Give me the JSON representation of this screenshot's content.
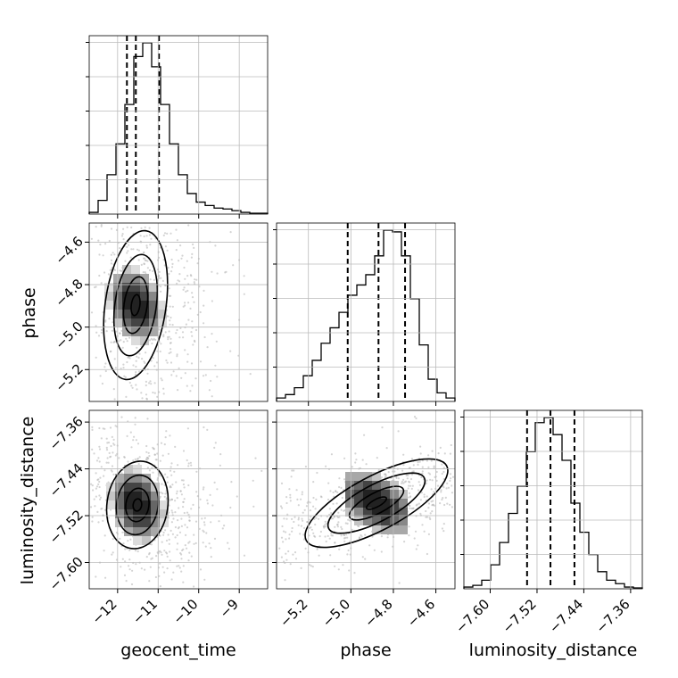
{
  "chart_data": {
    "type": "corner",
    "parameters": [
      "geocent_time",
      "phase",
      "luminosity_distance"
    ],
    "axis_labels": {
      "geocent_time": "geocent_time",
      "phase": "phase",
      "luminosity_distance": "luminosity_distance"
    },
    "ranges": {
      "geocent_time": [
        -12.7,
        -8.3
      ],
      "phase": [
        -5.35,
        -4.51
      ],
      "luminosity_distance": [
        -7.645,
        -7.34
      ]
    },
    "ticks": {
      "geocent_time": [
        -12,
        -11,
        -10,
        -9
      ],
      "phase": [
        -5.2,
        -5.0,
        -4.8,
        -4.6
      ],
      "luminosity_distance": [
        -7.6,
        -7.52,
        -7.44,
        -7.36
      ]
    },
    "tick_labels": {
      "geocent_time": [
        "−12",
        "−11",
        "−10",
        "−9"
      ],
      "phase": [
        "−5.2",
        "−5.0",
        "−4.8",
        "−4.6"
      ],
      "luminosity_distance": [
        "−7.60",
        "−7.52",
        "−7.44",
        "−7.36"
      ]
    },
    "quantiles": {
      "geocent_time": [
        -11.77,
        -11.55,
        -10.98
      ],
      "phase": [
        -5.015,
        -4.87,
        -4.745
      ],
      "luminosity_distance": [
        -7.537,
        -7.497,
        -7.456
      ]
    },
    "histograms": {
      "geocent_time": [
        0.01,
        0.08,
        0.23,
        0.41,
        0.64,
        0.92,
        1.0,
        0.86,
        0.64,
        0.41,
        0.23,
        0.12,
        0.07,
        0.05,
        0.035,
        0.03,
        0.02,
        0.01,
        0.005,
        0.005
      ],
      "phase": [
        0.02,
        0.04,
        0.08,
        0.15,
        0.24,
        0.34,
        0.43,
        0.52,
        0.62,
        0.68,
        0.74,
        0.85,
        1.0,
        0.99,
        0.85,
        0.6,
        0.33,
        0.13,
        0.05,
        0.02
      ],
      "luminosity_distance": [
        0.01,
        0.02,
        0.05,
        0.14,
        0.27,
        0.44,
        0.6,
        0.8,
        0.97,
        1.0,
        0.9,
        0.75,
        0.5,
        0.33,
        0.2,
        0.1,
        0.05,
        0.03,
        0.01,
        0.005
      ]
    },
    "grid": true
  }
}
